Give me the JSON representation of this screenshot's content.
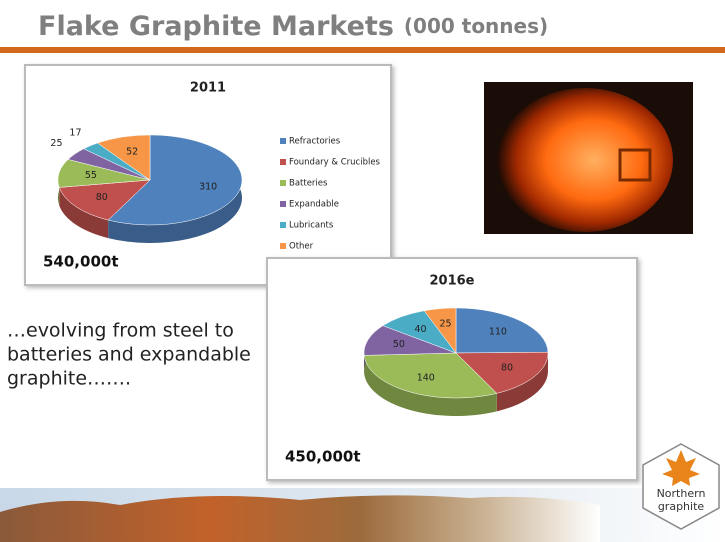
{
  "slide": {
    "title": "Flake Graphite Markets",
    "subtitle": "(000 tonnes)",
    "caption": [
      "…evolving from steel to",
      "batteries and expandable",
      "graphite……."
    ],
    "logo": [
      "Northern",
      "graphite"
    ]
  },
  "chart_data": [
    {
      "type": "pie",
      "title": "2011",
      "annotation": "540,000t",
      "legend": "right",
      "categories": [
        "Refractories",
        "Foundary & Crucibles",
        "Batteries",
        "Expandable",
        "Lubricants",
        "Other"
      ],
      "values": [
        310,
        80,
        55,
        25,
        17,
        52
      ],
      "colors": [
        "#4f81bd",
        "#c0504d",
        "#9bbb59",
        "#8064a2",
        "#4bacc6",
        "#f79646"
      ]
    },
    {
      "type": "pie",
      "title": "2016e",
      "annotation": "450,000t",
      "values": [
        110,
        80,
        140,
        50,
        40,
        25
      ],
      "colors": [
        "#4f81bd",
        "#c0504d",
        "#9bbb59",
        "#8064a2",
        "#4bacc6",
        "#f79646"
      ]
    }
  ]
}
